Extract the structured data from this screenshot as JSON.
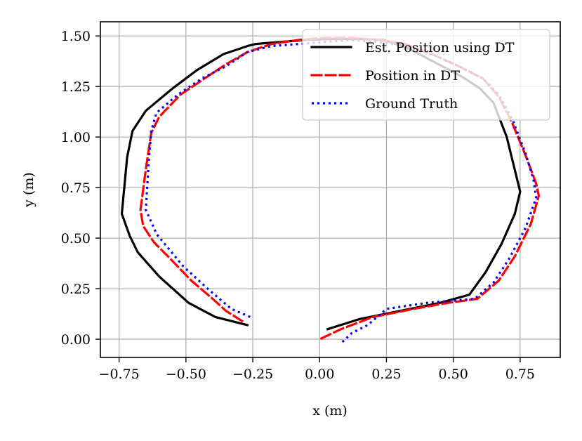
{
  "chart_data": {
    "type": "line",
    "title": "",
    "xlabel": "x (m)",
    "ylabel": "y (m)",
    "xlim": [
      -0.82,
      0.9
    ],
    "ylim": [
      -0.09,
      1.57
    ],
    "grid": true,
    "legend_position": "top-right",
    "xticks": [
      -0.75,
      -0.5,
      -0.25,
      0.0,
      0.25,
      0.5,
      0.75
    ],
    "xtick_labels": [
      "−0.75",
      "−0.50",
      "−0.25",
      "0.00",
      "0.25",
      "0.50",
      "0.75"
    ],
    "yticks": [
      0.0,
      0.25,
      0.5,
      0.75,
      1.0,
      1.25,
      1.5
    ],
    "ytick_labels": [
      "0.00",
      "0.25",
      "0.50",
      "0.75",
      "1.00",
      "1.25",
      "1.50"
    ],
    "series": [
      {
        "name": "Est. Position using DT",
        "color": "#000000",
        "style": "solid",
        "x": [
          -0.27,
          -0.39,
          -0.49,
          -0.6,
          -0.68,
          -0.71,
          -0.74,
          -0.72,
          -0.7,
          -0.65,
          -0.55,
          -0.46,
          -0.36,
          -0.27,
          -0.24,
          -0.15,
          -0.05,
          0.05,
          0.15,
          0.24,
          0.33,
          0.43,
          0.53,
          0.6,
          0.65,
          0.7,
          0.75,
          0.73,
          0.68,
          0.62,
          0.56,
          0.45,
          0.3,
          0.15,
          0.03
        ],
        "y": [
          0.07,
          0.11,
          0.18,
          0.31,
          0.43,
          0.51,
          0.62,
          0.9,
          1.03,
          1.13,
          1.24,
          1.33,
          1.41,
          1.45,
          1.46,
          1.47,
          1.48,
          1.485,
          1.485,
          1.48,
          1.44,
          1.37,
          1.3,
          1.24,
          1.17,
          1.0,
          0.73,
          0.62,
          0.47,
          0.33,
          0.22,
          0.18,
          0.14,
          0.1,
          0.05
        ]
      },
      {
        "name": "Position in DT",
        "color": "#ff0000",
        "style": "dashed",
        "x": [
          -0.29,
          -0.35,
          -0.4,
          -0.48,
          -0.56,
          -0.62,
          -0.66,
          -0.67,
          -0.65,
          -0.63,
          -0.6,
          -0.52,
          -0.43,
          -0.35,
          -0.27,
          -0.18,
          -0.08,
          0.02,
          0.12,
          0.22,
          0.32,
          0.42,
          0.52,
          0.61,
          0.67,
          0.72,
          0.77,
          0.81,
          0.82,
          0.79,
          0.73,
          0.67,
          0.59,
          0.48,
          0.35,
          0.2,
          0.08,
          0.0
        ],
        "y": [
          0.09,
          0.14,
          0.2,
          0.29,
          0.4,
          0.48,
          0.56,
          0.64,
          0.84,
          1.02,
          1.1,
          1.21,
          1.29,
          1.36,
          1.42,
          1.46,
          1.48,
          1.49,
          1.49,
          1.48,
          1.46,
          1.41,
          1.35,
          1.29,
          1.2,
          1.07,
          0.91,
          0.77,
          0.71,
          0.57,
          0.41,
          0.29,
          0.2,
          0.18,
          0.15,
          0.11,
          0.05,
          0.0
        ]
      },
      {
        "name": "Ground Truth",
        "color": "#0000ff",
        "style": "dotted",
        "x": [
          -0.26,
          -0.33,
          -0.41,
          -0.51,
          -0.61,
          -0.65,
          -0.64,
          -0.63,
          -0.61,
          -0.53,
          -0.44,
          -0.35,
          -0.27,
          -0.18,
          -0.08,
          0.02,
          0.12,
          0.22,
          0.32,
          0.42,
          0.52,
          0.61,
          0.67,
          0.72,
          0.77,
          0.8,
          0.81,
          0.77,
          0.71,
          0.65,
          0.58,
          0.4,
          0.25,
          0.18,
          0.12,
          0.08
        ],
        "y": [
          0.11,
          0.15,
          0.24,
          0.36,
          0.52,
          0.64,
          0.86,
          1.03,
          1.12,
          1.21,
          1.29,
          1.35,
          1.42,
          1.45,
          1.46,
          1.47,
          1.48,
          1.47,
          1.45,
          1.41,
          1.35,
          1.29,
          1.21,
          1.09,
          0.92,
          0.79,
          0.7,
          0.55,
          0.4,
          0.28,
          0.2,
          0.18,
          0.15,
          0.07,
          0.03,
          -0.02
        ]
      }
    ]
  }
}
